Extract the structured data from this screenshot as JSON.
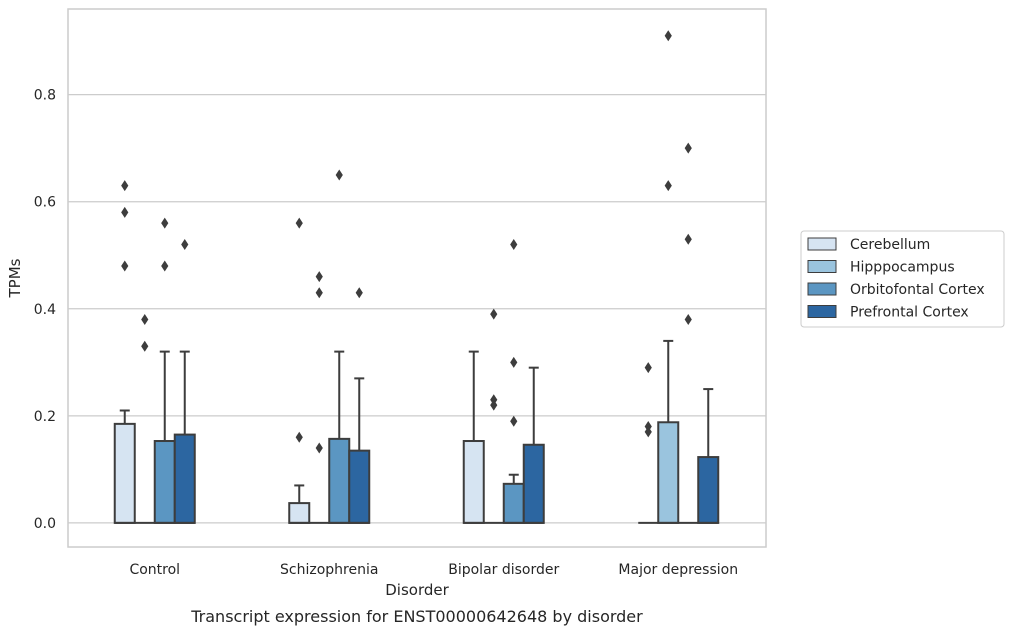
{
  "chart_data": {
    "type": "box",
    "title": "",
    "caption": "Transcript expression for ENST00000642648 by disorder",
    "xlabel": "Disorder",
    "ylabel": "TPMs",
    "ylim": [
      -0.045,
      0.96
    ],
    "yticks": [
      0.0,
      0.2,
      0.4,
      0.6,
      0.8
    ],
    "ytick_labels": [
      "0.0",
      "0.2",
      "0.4",
      "0.6",
      "0.8"
    ],
    "grid": "horizontal",
    "legend_position": "right",
    "categories": [
      "Control",
      "Schizophrenia",
      "Bipolar disorder",
      "Major depression"
    ],
    "series": [
      {
        "name": "Cerebellum",
        "color": "#d6e4f2",
        "boxes": [
          {
            "q1": 0.0,
            "median": 0.0,
            "q3": 0.185,
            "whisker_low": 0.0,
            "whisker_high": 0.21,
            "outliers": [
              0.63,
              0.58,
              0.48
            ]
          },
          {
            "q1": 0.0,
            "median": 0.0,
            "q3": 0.037,
            "whisker_low": 0.0,
            "whisker_high": 0.07,
            "outliers": [
              0.56,
              0.16
            ]
          },
          {
            "q1": 0.0,
            "median": 0.0,
            "q3": 0.153,
            "whisker_low": 0.0,
            "whisker_high": 0.32,
            "outliers": []
          },
          {
            "q1": 0.0,
            "median": 0.0,
            "q3": 0.0,
            "whisker_low": 0.0,
            "whisker_high": 0.0,
            "outliers": [
              0.29,
              0.18,
              0.17
            ]
          }
        ]
      },
      {
        "name": "Hipppocampus",
        "color": "#9ac4de",
        "boxes": [
          {
            "q1": 0.0,
            "median": 0.0,
            "q3": 0.0,
            "whisker_low": 0.0,
            "whisker_high": 0.0,
            "outliers": [
              0.38,
              0.33
            ]
          },
          {
            "q1": 0.0,
            "median": 0.0,
            "q3": 0.0,
            "whisker_low": 0.0,
            "whisker_high": 0.0,
            "outliers": [
              0.46,
              0.43,
              0.14
            ]
          },
          {
            "q1": 0.0,
            "median": 0.0,
            "q3": 0.0,
            "whisker_low": 0.0,
            "whisker_high": 0.0,
            "outliers": [
              0.39,
              0.23,
              0.22
            ]
          },
          {
            "q1": 0.0,
            "median": 0.0,
            "q3": 0.188,
            "whisker_low": 0.0,
            "whisker_high": 0.34,
            "outliers": [
              0.91,
              0.63
            ]
          }
        ]
      },
      {
        "name": "Orbitofontal Cortex",
        "color": "#5b96c2",
        "boxes": [
          {
            "q1": 0.0,
            "median": 0.0,
            "q3": 0.153,
            "whisker_low": 0.0,
            "whisker_high": 0.32,
            "outliers": [
              0.56,
              0.48
            ]
          },
          {
            "q1": 0.0,
            "median": 0.0,
            "q3": 0.157,
            "whisker_low": 0.0,
            "whisker_high": 0.32,
            "outliers": [
              0.65
            ]
          },
          {
            "q1": 0.0,
            "median": 0.0,
            "q3": 0.073,
            "whisker_low": 0.0,
            "whisker_high": 0.09,
            "outliers": [
              0.52,
              0.3,
              0.19
            ]
          },
          {
            "q1": 0.0,
            "median": 0.0,
            "q3": 0.0,
            "whisker_low": 0.0,
            "whisker_high": 0.0,
            "outliers": [
              0.7,
              0.53,
              0.38
            ]
          }
        ]
      },
      {
        "name": "Prefrontal Cortex",
        "color": "#2c66a1",
        "boxes": [
          {
            "q1": 0.0,
            "median": 0.0,
            "q3": 0.165,
            "whisker_low": 0.0,
            "whisker_high": 0.32,
            "outliers": [
              0.52
            ]
          },
          {
            "q1": 0.0,
            "median": 0.0,
            "q3": 0.135,
            "whisker_low": 0.0,
            "whisker_high": 0.27,
            "outliers": [
              0.43
            ]
          },
          {
            "q1": 0.0,
            "median": 0.0,
            "q3": 0.146,
            "whisker_low": 0.0,
            "whisker_high": 0.29,
            "outliers": []
          },
          {
            "q1": 0.0,
            "median": 0.0,
            "q3": 0.123,
            "whisker_low": 0.0,
            "whisker_high": 0.25,
            "outliers": []
          }
        ]
      }
    ]
  }
}
